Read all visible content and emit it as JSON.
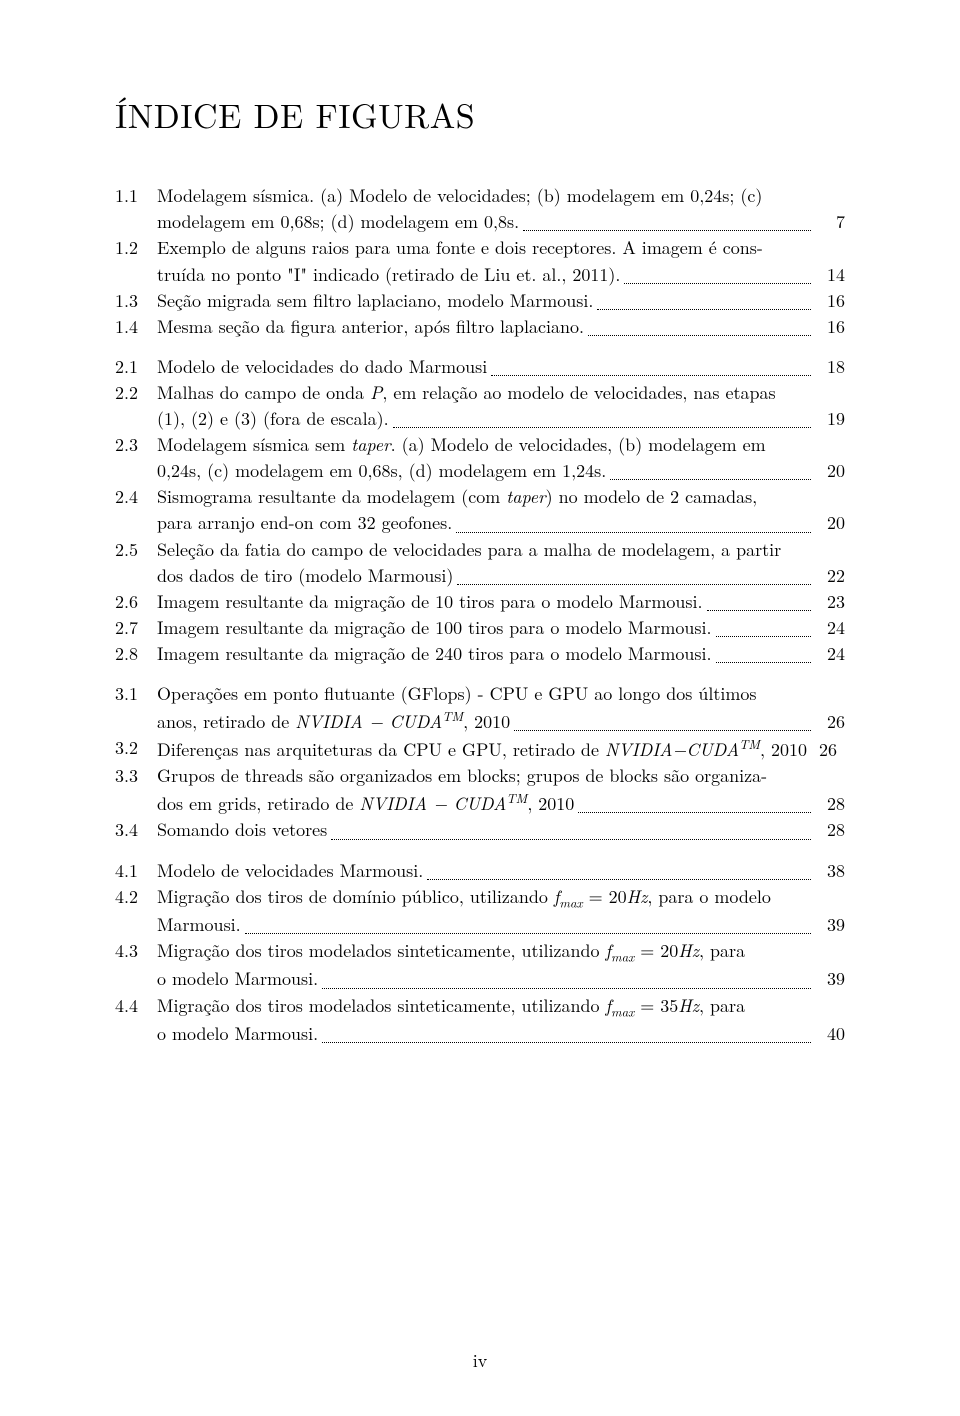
{
  "title": "ÍNDICE DE FIGURAS",
  "footer": "iv",
  "nvidia_cuda_html": "<span class='italic'>NVIDIA − CUDA</span><span class='sup italic'>TM</span>, 2010",
  "fmax_html": "<span class='italic'>f</span><span class='sub italic'>max</span>",
  "entries": [
    {
      "num": "1.1",
      "lines": [
        "Modelagem sísmica. (a) Modelo de velocidades; (b) modelagem em 0,24s; (c)"
      ],
      "last": "modelagem em 0,68s; (d) modelagem em 0,8s.",
      "page": "7"
    },
    {
      "num": "1.2",
      "lines": [
        "Exemplo de alguns raios para uma fonte e dois receptores. A imagem é cons-"
      ],
      "last": "truída no ponto \"I\" indicado (retirado de Liu et. al., 2011).",
      "page": "14"
    },
    {
      "num": "1.3",
      "lines": [],
      "last": "Seção migrada sem filtro laplaciano, modelo Marmousi.",
      "page": "16"
    },
    {
      "num": "1.4",
      "lines": [],
      "last": "Mesma seção da figura anterior, após filtro laplaciano.",
      "page": "16",
      "gapAfter": true
    },
    {
      "num": "2.1",
      "lines": [],
      "last": "Modelo de velocidades do dado Marmousi",
      "page": "18"
    },
    {
      "num": "2.2",
      "lines": [
        "Malhas do campo de onda <span class='italic'>P</span>, em relação ao modelo de velocidades, nas etapas"
      ],
      "last": "(1), (2) e (3) (fora de escala).",
      "page": "19"
    },
    {
      "num": "2.3",
      "lines": [
        "Modelagem sísmica sem <span class='italic'>taper</span>. (a) Modelo de velocidades, (b) modelagem em"
      ],
      "last": "0,24s, (c) modelagem em 0,68s, (d) modelagem em 1,24s.",
      "page": "20"
    },
    {
      "num": "2.4",
      "lines": [
        "Sismograma resultante da modelagem (com <span class='italic'>taper</span>) no modelo de 2 camadas,"
      ],
      "last": "para arranjo end-on com 32 geofones.",
      "page": "20"
    },
    {
      "num": "2.5",
      "lines": [
        "Seleção da fatia do campo de velocidades para a malha de modelagem, a partir"
      ],
      "last": "dos dados de tiro (modelo Marmousi)",
      "page": "22"
    },
    {
      "num": "2.6",
      "lines": [],
      "last": "Imagem resultante da migração de 10 tiros para o modelo Marmousi.",
      "page": "23"
    },
    {
      "num": "2.7",
      "lines": [],
      "last": "Imagem resultante da migração de 100 tiros para o modelo Marmousi.",
      "page": "24"
    },
    {
      "num": "2.8",
      "lines": [],
      "last": "Imagem resultante da migração de 240 tiros para o modelo Marmousi.",
      "page": "24",
      "gapAfter": true
    },
    {
      "num": "3.1",
      "lines": [
        "Operações em ponto flutuante (GFlops) - CPU e GPU ao longo dos últimos"
      ],
      "last": "anos, retirado de <span class='italic'>NVIDIA − CUDA</span><span class='sup italic'>TM</span>, 2010",
      "page": "26"
    },
    {
      "num": "3.2",
      "lines": [],
      "last_full": "Diferenças nas arquiteturas da CPU e GPU, retirado de <span class='italic'>NVIDIA−CUDA</span><span class='sup italic'>TM</span>, 2010",
      "page": "26"
    },
    {
      "num": "3.3",
      "lines": [
        "Grupos de threads são organizados em blocks; grupos de blocks são organiza-"
      ],
      "last": "dos em grids, retirado de <span class='italic'>NVIDIA − CUDA</span><span class='sup italic'>TM</span>, 2010",
      "page": "28"
    },
    {
      "num": "3.4",
      "lines": [],
      "last": "Somando dois vetores",
      "page": "28",
      "gapAfter": true
    },
    {
      "num": "4.1",
      "lines": [],
      "last": "Modelo de velocidades Marmousi.",
      "page": "38"
    },
    {
      "num": "4.2",
      "lines": [
        "Migração dos tiros de domínio público, utilizando <span class='italic'>f</span><span class='sub italic'>max</span> = 20<span class='italic'>Hz</span>, para o modelo"
      ],
      "last": "Marmousi.",
      "page": "39"
    },
    {
      "num": "4.3",
      "lines": [
        "Migração dos tiros modelados sinteticamente, utilizando <span class='italic'>f</span><span class='sub italic'>max</span> = 20<span class='italic'>Hz</span>, para"
      ],
      "last": "o modelo Marmousi.",
      "page": "39"
    },
    {
      "num": "4.4",
      "lines": [
        "Migração dos tiros modelados sinteticamente, utilizando <span class='italic'>f</span><span class='sub italic'>max</span> = 35<span class='italic'>Hz</span>, para"
      ],
      "last": "o modelo Marmousi.",
      "page": "40"
    }
  ]
}
